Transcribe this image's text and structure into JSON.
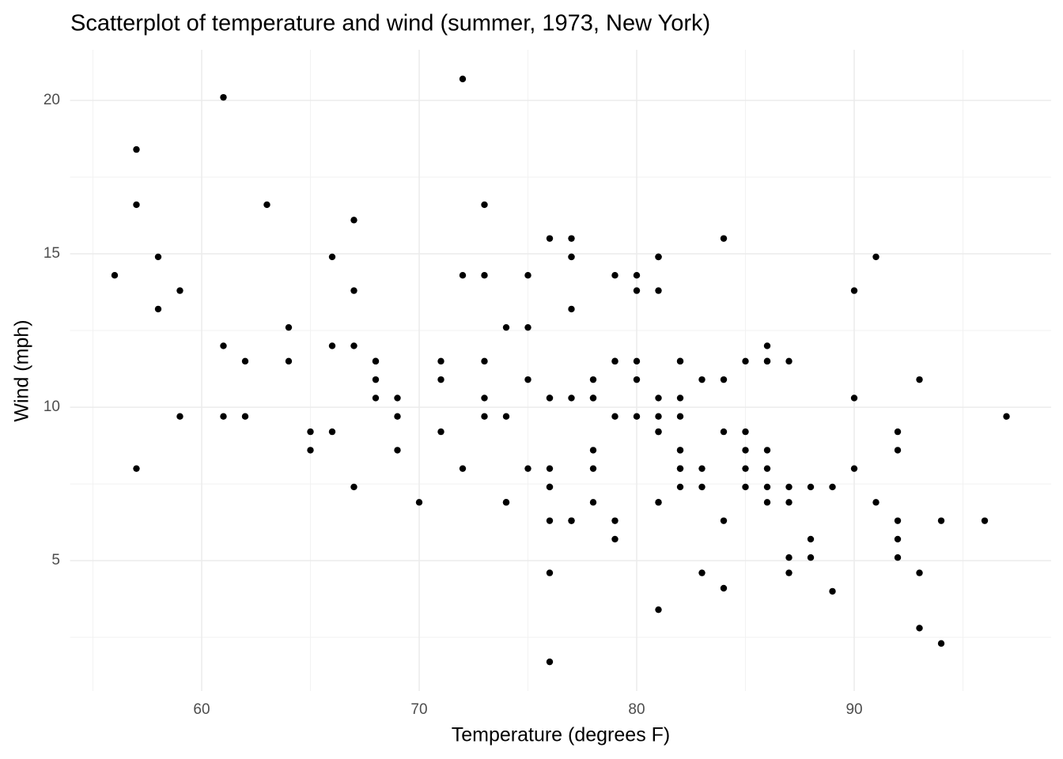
{
  "chart_data": {
    "type": "scatter",
    "title": "Scatterplot of temperature and wind (summer, 1973, New York)",
    "x_label": "Temperature (degrees F)",
    "y_label": "Wind (mph)",
    "x": [
      67,
      72,
      74,
      62,
      56,
      66,
      65,
      59,
      61,
      69,
      74,
      69,
      66,
      68,
      58,
      64,
      66,
      57,
      68,
      62,
      59,
      73,
      61,
      61,
      57,
      58,
      57,
      67,
      81,
      79,
      76,
      78,
      74,
      67,
      84,
      85,
      79,
      82,
      87,
      90,
      87,
      93,
      92,
      82,
      80,
      79,
      77,
      72,
      65,
      73,
      76,
      77,
      76,
      76,
      76,
      75,
      78,
      73,
      80,
      77,
      83,
      84,
      85,
      81,
      84,
      83,
      83,
      88,
      92,
      92,
      89,
      82,
      73,
      81,
      91,
      80,
      81,
      82,
      84,
      87,
      85,
      74,
      81,
      82,
      86,
      85,
      82,
      86,
      88,
      86,
      83,
      81,
      81,
      81,
      82,
      86,
      85,
      87,
      89,
      90,
      90,
      92,
      86,
      86,
      82,
      80,
      79,
      77,
      79,
      76,
      78,
      78,
      77,
      72,
      75,
      79,
      81,
      86,
      88,
      97,
      94,
      96,
      94,
      91,
      92,
      93,
      93,
      87,
      84,
      80,
      78,
      75,
      73,
      81,
      76,
      77,
      71,
      71,
      78,
      67,
      76,
      68,
      82,
      64,
      71,
      81,
      69,
      63,
      70,
      77,
      75,
      76,
      68
    ],
    "series": [
      {
        "name": "Wind",
        "color": "#000000",
        "values": [
          7.4,
          8.0,
          12.6,
          11.5,
          14.3,
          14.9,
          8.6,
          13.8,
          20.1,
          8.6,
          6.9,
          9.7,
          9.2,
          10.9,
          13.2,
          11.5,
          12.0,
          18.4,
          11.5,
          9.7,
          9.7,
          16.6,
          9.7,
          12.0,
          16.6,
          14.9,
          8.0,
          12.0,
          14.9,
          5.7,
          7.4,
          8.6,
          9.7,
          16.1,
          9.2,
          8.6,
          14.3,
          9.7,
          6.9,
          13.8,
          11.5,
          10.9,
          9.2,
          8.0,
          13.8,
          11.5,
          14.9,
          20.7,
          9.2,
          11.5,
          10.3,
          6.3,
          1.7,
          4.6,
          6.3,
          8.0,
          8.0,
          10.3,
          11.5,
          14.9,
          8.0,
          4.1,
          9.2,
          9.2,
          10.9,
          4.6,
          10.9,
          5.1,
          6.3,
          5.7,
          7.4,
          8.6,
          14.3,
          14.9,
          14.9,
          14.3,
          6.9,
          10.3,
          6.3,
          5.1,
          11.5,
          6.9,
          9.7,
          11.5,
          8.6,
          8.0,
          8.6,
          12.0,
          7.4,
          7.4,
          7.4,
          9.2,
          6.9,
          13.8,
          7.4,
          6.9,
          7.4,
          4.6,
          4.0,
          10.3,
          8.0,
          8.6,
          11.5,
          11.5,
          11.5,
          9.7,
          11.5,
          10.3,
          6.3,
          7.4,
          10.9,
          10.3,
          15.5,
          14.3,
          12.6,
          9.7,
          3.4,
          8.0,
          5.7,
          9.7,
          2.3,
          6.3,
          6.3,
          6.9,
          5.1,
          2.8,
          4.6,
          7.4,
          15.5,
          10.9,
          10.3,
          10.9,
          9.7,
          14.9,
          15.5,
          6.3,
          10.9,
          11.5,
          6.9,
          13.8,
          10.3,
          10.3,
          8.0,
          12.6,
          9.2,
          10.3,
          10.3,
          16.6,
          6.9,
          13.2,
          14.3,
          8.0,
          11.5
        ]
      }
    ],
    "xlim": [
      53.95,
      99.05
    ],
    "ylim": [
      0.75,
      21.65
    ],
    "xticks": [
      60,
      70,
      80,
      90
    ],
    "yticks": [
      5,
      10,
      15,
      20
    ],
    "x_minor_grid": [
      55,
      65,
      75,
      85,
      95
    ],
    "y_minor_grid": [
      2.5,
      7.5,
      12.5,
      17.5
    ],
    "grid": true
  }
}
